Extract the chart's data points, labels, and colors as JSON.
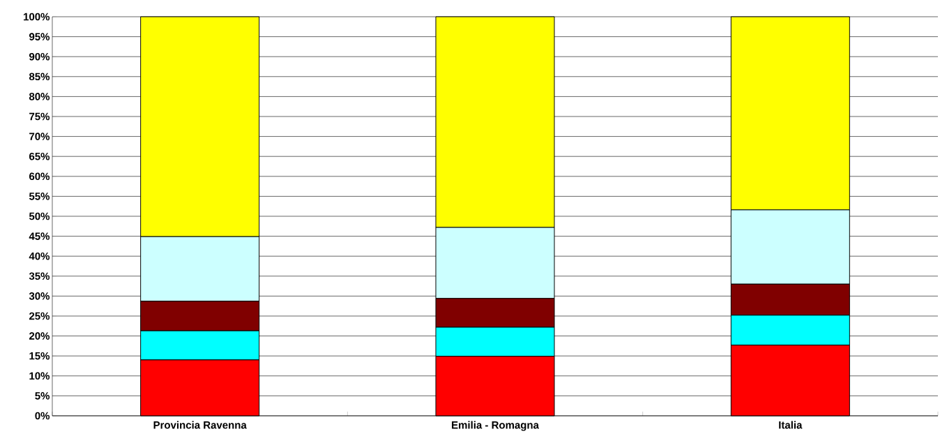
{
  "chart_data": {
    "type": "bar",
    "stacked": true,
    "categories": [
      "Provincia Ravenna",
      "Emilia - Romagna",
      "Italia"
    ],
    "series": [
      {
        "color": "#ff0000",
        "values": [
          14.0,
          14.9,
          17.7
        ]
      },
      {
        "color": "#00ffff",
        "values": [
          7.3,
          7.3,
          7.5
        ]
      },
      {
        "color": "#800000",
        "values": [
          7.4,
          7.2,
          7.8
        ]
      },
      {
        "color": "#ccffff",
        "values": [
          16.2,
          17.8,
          18.6
        ]
      },
      {
        "color": "#ffff00",
        "values": [
          55.1,
          52.8,
          48.4
        ]
      }
    ],
    "ylim": [
      0,
      100
    ],
    "yticks": [
      {
        "value": 0,
        "label": "0%"
      },
      {
        "value": 5,
        "label": "5%"
      },
      {
        "value": 10,
        "label": "10%"
      },
      {
        "value": 15,
        "label": "15%"
      },
      {
        "value": 20,
        "label": "20%"
      },
      {
        "value": 25,
        "label": "25%"
      },
      {
        "value": 30,
        "label": "30%"
      },
      {
        "value": 35,
        "label": "35%"
      },
      {
        "value": 40,
        "label": "40%"
      },
      {
        "value": 45,
        "label": "45%"
      },
      {
        "value": 50,
        "label": "50%"
      },
      {
        "value": 55,
        "label": "55%"
      },
      {
        "value": 60,
        "label": "60%"
      },
      {
        "value": 65,
        "label": "65%"
      },
      {
        "value": 70,
        "label": "70%"
      },
      {
        "value": 75,
        "label": "75%"
      },
      {
        "value": 80,
        "label": "80%"
      },
      {
        "value": 85,
        "label": "85%"
      },
      {
        "value": 90,
        "label": "90%"
      },
      {
        "value": 95,
        "label": "95%"
      },
      {
        "value": 100,
        "label": "100%"
      }
    ],
    "grid": "y"
  }
}
